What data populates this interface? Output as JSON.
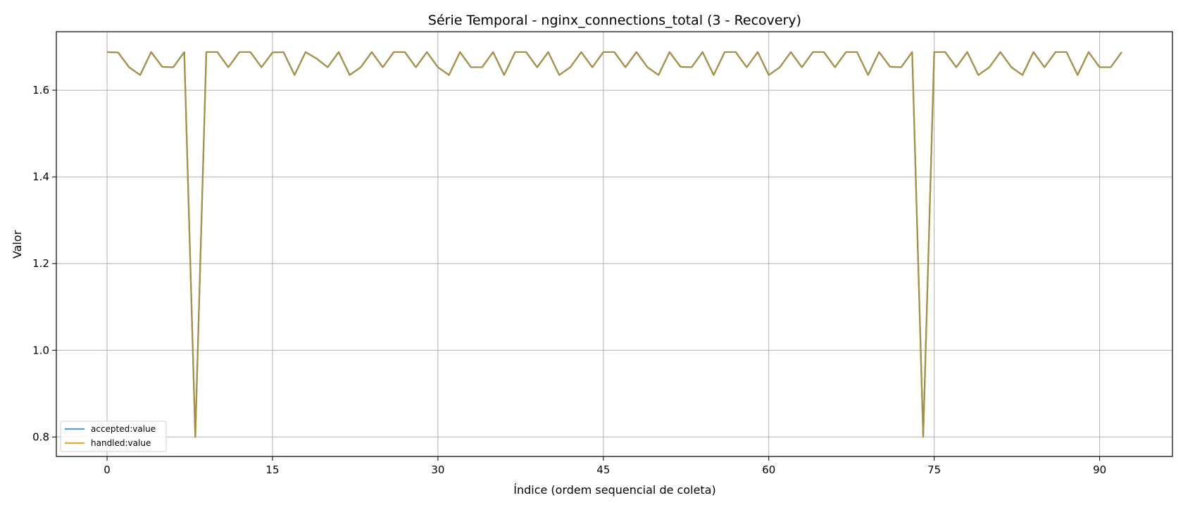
{
  "chart_data": {
    "type": "line",
    "title": "Série Temporal - nginx_connections_total (3 - Recovery)",
    "xlabel": "Índice (ordem sequencial de coleta)",
    "ylabel": "Valor",
    "xlim": [
      -4.6,
      96.6
    ],
    "ylim": [
      0.755,
      1.735
    ],
    "xticks": [
      0,
      15,
      30,
      45,
      60,
      75,
      90
    ],
    "yticks": [
      0.8,
      1.0,
      1.2,
      1.4,
      1.6
    ],
    "ytick_labels": [
      "0.8",
      "1.0",
      "1.2",
      "1.4",
      "1.6"
    ],
    "grid": true,
    "legend_position": "lower left",
    "series": [
      {
        "name": "accepted:value",
        "color": "#5b9bd5",
        "x": [
          0,
          1,
          2,
          3,
          4,
          5,
          6,
          7,
          8,
          9,
          10,
          11,
          12,
          13,
          14,
          15,
          16,
          17,
          18,
          19,
          20,
          21,
          22,
          23,
          24,
          25,
          26,
          27,
          28,
          29,
          30,
          31,
          32,
          33,
          34,
          35,
          36,
          37,
          38,
          39,
          40,
          41,
          42,
          43,
          44,
          45,
          46,
          47,
          48,
          49,
          50,
          51,
          52,
          53,
          54,
          55,
          56,
          57,
          58,
          59,
          60,
          61,
          62,
          63,
          64,
          65,
          66,
          67,
          68,
          69,
          70,
          71,
          72,
          73,
          74,
          75,
          76,
          77,
          78,
          79,
          80,
          81,
          82,
          83,
          84,
          85,
          86,
          87,
          88,
          89,
          90,
          91,
          92
        ],
        "values": [
          1.688,
          1.687,
          1.653,
          1.635,
          1.688,
          1.654,
          1.653,
          1.688,
          0.8,
          1.688,
          1.688,
          1.653,
          1.688,
          1.688,
          1.653,
          1.687,
          1.688,
          1.635,
          1.688,
          1.673,
          1.653,
          1.688,
          1.635,
          1.653,
          1.688,
          1.653,
          1.688,
          1.688,
          1.653,
          1.688,
          1.653,
          1.635,
          1.688,
          1.653,
          1.653,
          1.688,
          1.635,
          1.688,
          1.688,
          1.653,
          1.688,
          1.635,
          1.653,
          1.688,
          1.653,
          1.688,
          1.688,
          1.653,
          1.688,
          1.653,
          1.635,
          1.688,
          1.654,
          1.653,
          1.688,
          1.635,
          1.688,
          1.688,
          1.653,
          1.688,
          1.635,
          1.653,
          1.688,
          1.653,
          1.688,
          1.688,
          1.653,
          1.688,
          1.688,
          1.635,
          1.688,
          1.654,
          1.653,
          1.688,
          0.8,
          1.688,
          1.688,
          1.653,
          1.688,
          1.635,
          1.653,
          1.688,
          1.653,
          1.635,
          1.688,
          1.653,
          1.688,
          1.688,
          1.635,
          1.688,
          1.653,
          1.653,
          1.688
        ]
      },
      {
        "name": "handled:value",
        "color": "#e8a838",
        "x": [
          0,
          1,
          2,
          3,
          4,
          5,
          6,
          7,
          8,
          9,
          10,
          11,
          12,
          13,
          14,
          15,
          16,
          17,
          18,
          19,
          20,
          21,
          22,
          23,
          24,
          25,
          26,
          27,
          28,
          29,
          30,
          31,
          32,
          33,
          34,
          35,
          36,
          37,
          38,
          39,
          40,
          41,
          42,
          43,
          44,
          45,
          46,
          47,
          48,
          49,
          50,
          51,
          52,
          53,
          54,
          55,
          56,
          57,
          58,
          59,
          60,
          61,
          62,
          63,
          64,
          65,
          66,
          67,
          68,
          69,
          70,
          71,
          72,
          73,
          74,
          75,
          76,
          77,
          78,
          79,
          80,
          81,
          82,
          83,
          84,
          85,
          86,
          87,
          88,
          89,
          90,
          91,
          92
        ],
        "values": [
          1.688,
          1.687,
          1.653,
          1.635,
          1.688,
          1.654,
          1.653,
          1.688,
          0.8,
          1.688,
          1.688,
          1.653,
          1.688,
          1.688,
          1.653,
          1.687,
          1.688,
          1.635,
          1.688,
          1.673,
          1.653,
          1.688,
          1.635,
          1.653,
          1.688,
          1.653,
          1.688,
          1.688,
          1.653,
          1.688,
          1.653,
          1.635,
          1.688,
          1.653,
          1.653,
          1.688,
          1.635,
          1.688,
          1.688,
          1.653,
          1.688,
          1.635,
          1.653,
          1.688,
          1.653,
          1.688,
          1.688,
          1.653,
          1.688,
          1.653,
          1.635,
          1.688,
          1.654,
          1.653,
          1.688,
          1.635,
          1.688,
          1.688,
          1.653,
          1.688,
          1.635,
          1.653,
          1.688,
          1.653,
          1.688,
          1.688,
          1.653,
          1.688,
          1.688,
          1.635,
          1.688,
          1.654,
          1.653,
          1.688,
          0.8,
          1.688,
          1.688,
          1.653,
          1.688,
          1.635,
          1.653,
          1.688,
          1.653,
          1.635,
          1.688,
          1.653,
          1.688,
          1.688,
          1.635,
          1.688,
          1.653,
          1.653,
          1.688
        ]
      }
    ],
    "overlap_color": "#a89043"
  }
}
